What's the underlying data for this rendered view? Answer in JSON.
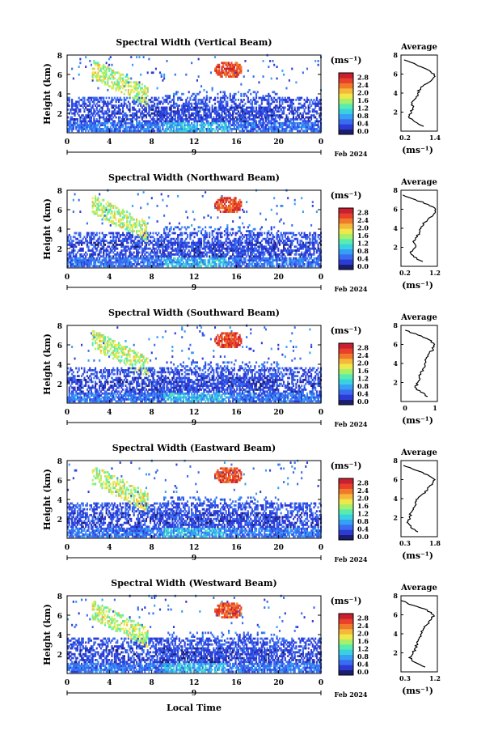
{
  "figure": {
    "xlabel": "Local Time",
    "month_label": "Feb 2024",
    "date_label": "9",
    "unit_label": "(ms⁻¹)",
    "colorbar_ticks": [
      "0.0",
      "0.4",
      "0.8",
      "1.2",
      "1.6",
      "2.0",
      "2.4",
      "2.8"
    ],
    "colormap": [
      "#1b1e6e",
      "#2d3bd6",
      "#3a6cf0",
      "#35a0f5",
      "#39d1e0",
      "#58ecb0",
      "#a8f06a",
      "#f0e84a",
      "#f5b83a",
      "#f07a2a",
      "#e8402a",
      "#c82030"
    ]
  },
  "chart_data": [
    {
      "type": "heatmap",
      "title": "Spectral Width (Vertical Beam)",
      "ylabel": "Height (km)",
      "xlim": [
        0,
        24
      ],
      "ylim": [
        0,
        8
      ],
      "xticks": [
        "0",
        "4",
        "8",
        "12",
        "16",
        "20",
        "0"
      ],
      "yticks": [
        "2",
        "4",
        "6",
        "8"
      ],
      "zlim": [
        0,
        3.0
      ],
      "profile": {
        "title": "Average",
        "xlabel": "(ms⁻¹)",
        "xticks": [
          "0.2",
          "1.4"
        ],
        "xlim": [
          0.2,
          1.4
        ],
        "yticks": [
          "2",
          "4",
          "6",
          "8"
        ],
        "ylim": [
          0,
          8
        ],
        "heights": [
          0.5,
          1.0,
          1.5,
          2.0,
          2.5,
          3.0,
          3.5,
          4.0,
          4.5,
          5.0,
          5.5,
          6.0,
          6.5,
          7.0,
          7.5
        ],
        "values": [
          0.95,
          0.65,
          0.45,
          0.55,
          0.6,
          0.55,
          0.7,
          0.75,
          0.85,
          1.05,
          1.25,
          1.3,
          1.05,
          0.7,
          0.3
        ]
      }
    },
    {
      "type": "heatmap",
      "title": "Spectral Width (Northward Beam)",
      "ylabel": "Height (km)",
      "xlim": [
        0,
        24
      ],
      "ylim": [
        0,
        8
      ],
      "xticks": [
        "0",
        "4",
        "8",
        "12",
        "16",
        "20",
        "0"
      ],
      "yticks": [
        "2",
        "4",
        "6",
        "8"
      ],
      "zlim": [
        0,
        3.0
      ],
      "profile": {
        "title": "Average",
        "xlabel": "(ms⁻¹)",
        "xticks": [
          "0.2",
          "1.2"
        ],
        "xlim": [
          0.2,
          1.2
        ],
        "yticks": [
          "2",
          "4",
          "6",
          "8"
        ],
        "ylim": [
          0,
          8
        ],
        "heights": [
          0.5,
          1.0,
          1.5,
          2.0,
          2.5,
          3.0,
          3.5,
          4.0,
          4.5,
          5.0,
          5.5,
          6.0,
          6.5,
          7.0,
          7.5
        ],
        "values": [
          0.8,
          0.55,
          0.45,
          0.6,
          0.55,
          0.6,
          0.7,
          0.75,
          0.8,
          0.95,
          1.1,
          1.15,
          0.95,
          0.6,
          0.25
        ]
      }
    },
    {
      "type": "heatmap",
      "title": "Spectral Width (Southward Beam)",
      "ylabel": "Height (km)",
      "xlim": [
        0,
        24
      ],
      "ylim": [
        0,
        8
      ],
      "xticks": [
        "0",
        "4",
        "8",
        "12",
        "16",
        "20",
        "0"
      ],
      "yticks": [
        "2",
        "4",
        "6",
        "8"
      ],
      "zlim": [
        0,
        3.0
      ],
      "profile": {
        "title": "Average",
        "xlabel": "(ms⁻¹)",
        "xticks": [
          "0",
          "1"
        ],
        "xlim": [
          0,
          1.3
        ],
        "yticks": [
          "2",
          "4",
          "6",
          "8"
        ],
        "ylim": [
          0,
          8
        ],
        "heights": [
          0.5,
          1.0,
          1.5,
          2.0,
          2.5,
          3.0,
          3.5,
          4.0,
          4.5,
          5.0,
          5.5,
          6.0,
          6.5,
          7.0,
          7.5
        ],
        "values": [
          0.95,
          0.7,
          0.5,
          0.6,
          0.65,
          0.7,
          0.8,
          0.85,
          0.9,
          1.0,
          1.15,
          1.2,
          1.0,
          0.6,
          0.15
        ]
      }
    },
    {
      "type": "heatmap",
      "title": "Spectral Width (Eastward Beam)",
      "ylabel": "Height (km)",
      "xlim": [
        0,
        24
      ],
      "ylim": [
        0,
        8
      ],
      "xticks": [
        "0",
        "4",
        "8",
        "12",
        "16",
        "20",
        "0"
      ],
      "yticks": [
        "2",
        "4",
        "6",
        "8"
      ],
      "zlim": [
        0,
        3.0
      ],
      "profile": {
        "title": "Average",
        "xlabel": "(ms⁻¹)",
        "xticks": [
          "0.3",
          "1.8"
        ],
        "xlim": [
          0.3,
          1.8
        ],
        "yticks": [
          "2",
          "4",
          "6",
          "8"
        ],
        "ylim": [
          0,
          8
        ],
        "heights": [
          0.5,
          1.0,
          1.5,
          2.0,
          2.5,
          3.0,
          3.5,
          4.0,
          4.5,
          5.0,
          5.5,
          6.0,
          6.5,
          7.0,
          7.5
        ],
        "values": [
          1.0,
          0.7,
          0.55,
          0.65,
          0.7,
          0.8,
          0.9,
          1.0,
          1.2,
          1.4,
          1.6,
          1.7,
          1.4,
          0.9,
          0.4
        ]
      }
    },
    {
      "type": "heatmap",
      "title": "Spectral Width (Westward Beam)",
      "ylabel": "Height (km)",
      "xlim": [
        0,
        24
      ],
      "ylim": [
        0,
        8
      ],
      "xticks": [
        "0",
        "4",
        "8",
        "12",
        "16",
        "20",
        "0"
      ],
      "yticks": [
        "2",
        "4",
        "6",
        "8"
      ],
      "zlim": [
        0,
        3.0
      ],
      "profile": {
        "title": "Average",
        "xlabel": "(ms⁻¹)",
        "xticks": [
          "0.3",
          "1.2"
        ],
        "xlim": [
          0.3,
          1.2
        ],
        "yticks": [
          "2",
          "4",
          "6",
          "8"
        ],
        "ylim": [
          0,
          8
        ],
        "heights": [
          0.5,
          1.0,
          1.5,
          2.0,
          2.5,
          3.0,
          3.5,
          4.0,
          4.5,
          5.0,
          5.5,
          6.0,
          6.5,
          7.0,
          7.5
        ],
        "values": [
          0.9,
          0.65,
          0.5,
          0.6,
          0.65,
          0.7,
          0.75,
          0.8,
          0.85,
          0.95,
          1.05,
          1.1,
          0.95,
          0.6,
          0.3
        ]
      }
    }
  ]
}
